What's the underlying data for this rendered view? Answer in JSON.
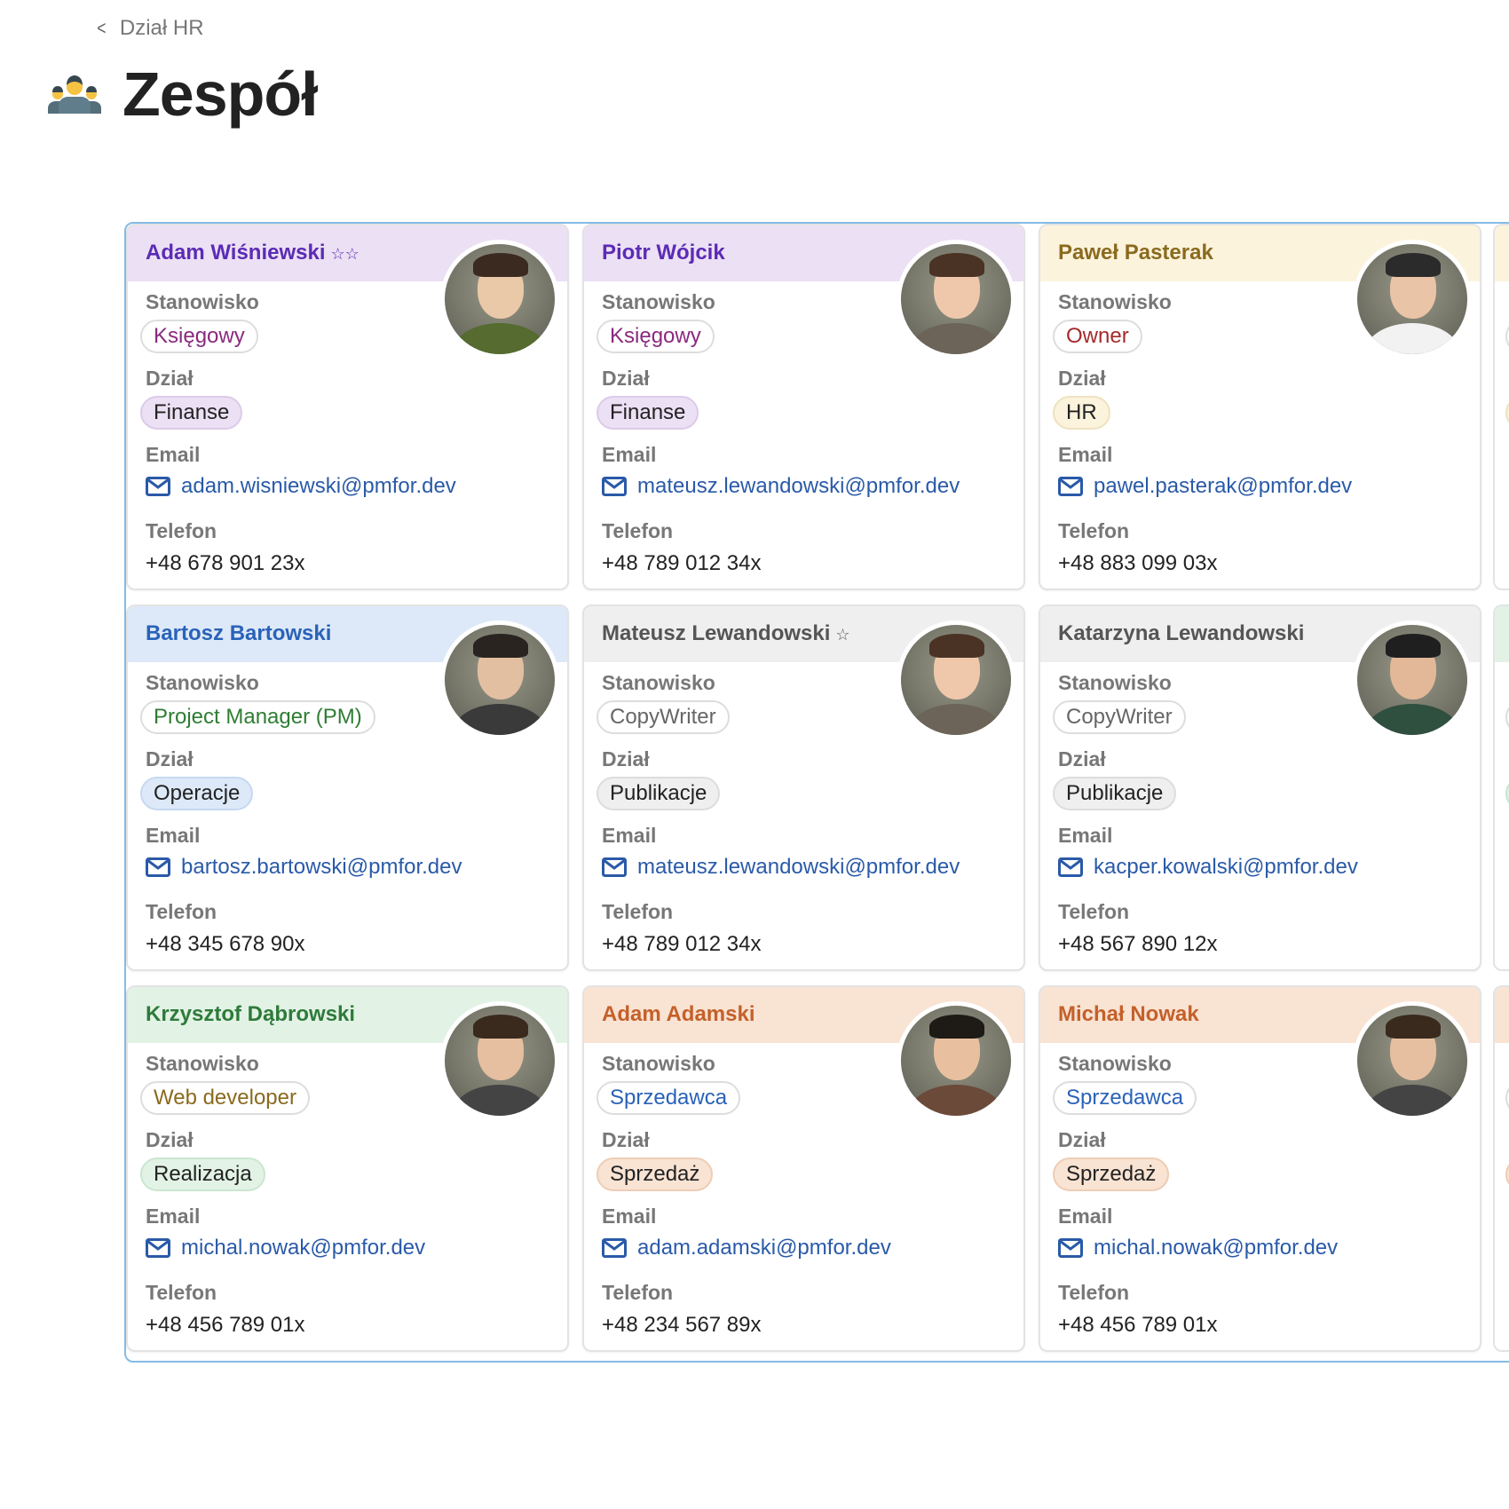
{
  "breadcrumb": {
    "label": "Dział HR"
  },
  "page": {
    "title": "Zespół",
    "icon": "team-icon"
  },
  "labels": {
    "position": "Stanowisko",
    "department": "Dział",
    "email": "Email",
    "phone": "Telefon"
  },
  "cards": [
    {
      "name": "Adam Wiśniewski",
      "stars": "☆☆",
      "position": "Księgowy",
      "department": "Finanse",
      "email": "adam.wisniewski@pmfor.dev",
      "phone": "+48 678 901 23x",
      "theme": "purple",
      "posColor": "#8a2a7f"
    },
    {
      "name": "Piotr Wójcik",
      "stars": "",
      "position": "Księgowy",
      "department": "Finanse",
      "email": "mateusz.lewandowski@pmfor.dev",
      "phone": "+48 789 012 34x",
      "theme": "purple",
      "posColor": "#8a2a7f"
    },
    {
      "name": "Paweł Pasterak",
      "stars": "",
      "position": "Owner",
      "department": "HR",
      "email": "pawel.pasterak@pmfor.dev",
      "phone": "+48 883 099 03x",
      "theme": "yellow",
      "posColor": "#a52a2a"
    },
    {
      "name": "Bartosz Bartowski",
      "stars": "",
      "position": "Project Manager (PM)",
      "department": "Operacje",
      "email": "bartosz.bartowski@pmfor.dev",
      "phone": "+48 345 678 90x",
      "theme": "blue",
      "posColor": "#2e7d32"
    },
    {
      "name": "Mateusz Lewandowski",
      "stars": "☆",
      "position": "CopyWriter",
      "department": "Publikacje",
      "email": "mateusz.lewandowski@pmfor.dev",
      "phone": "+48 789 012 34x",
      "theme": "gray",
      "posColor": "#666666"
    },
    {
      "name": "Katarzyna Lewandowski",
      "stars": "",
      "position": "CopyWriter",
      "department": "Publikacje",
      "email": "kacper.kowalski@pmfor.dev",
      "phone": "+48 567 890 12x",
      "theme": "gray",
      "posColor": "#666666"
    },
    {
      "name": "Krzysztof Dąbrowski",
      "stars": "",
      "position": "Web developer",
      "department": "Realizacja",
      "email": "michal.nowak@pmfor.dev",
      "phone": "+48 456 789 01x",
      "theme": "green",
      "posColor": "#8a6a1f"
    },
    {
      "name": "Adam Adamski",
      "stars": "",
      "position": "Sprzedawca",
      "department": "Sprzedaż",
      "email": "adam.adamski@pmfor.dev",
      "phone": "+48 234 567 89x",
      "theme": "orange",
      "posColor": "#2a62b8"
    },
    {
      "name": "Michał Nowak",
      "stars": "",
      "position": "Sprzedawca",
      "department": "Sprzedaż",
      "email": "michal.nowak@pmfor.dev",
      "phone": "+48 456 789 01x",
      "theme": "orange",
      "posColor": "#2a62b8"
    }
  ],
  "partialThemes": [
    "yellow",
    "green",
    "orange"
  ],
  "themes": {
    "purple": {
      "hdr": "#ece0f4",
      "name": "#5b2bb5",
      "pill": "#ece0f4",
      "pillBorder": "#dccbe8"
    },
    "yellow": {
      "hdr": "#fbf3dc",
      "name": "#8a6a1f",
      "pill": "#fbf3dc",
      "pillBorder": "#eee2bf"
    },
    "blue": {
      "hdr": "#dde9f8",
      "name": "#2a62b8",
      "pill": "#dde9f8",
      "pillBorder": "#c6d9f0"
    },
    "gray": {
      "hdr": "#efefef",
      "name": "#555555",
      "pill": "#efefef",
      "pillBorder": "#dddddd"
    },
    "green": {
      "hdr": "#e2f3e6",
      "name": "#2f7a3a",
      "pill": "#e2f3e6",
      "pillBorder": "#c9e6cf"
    },
    "orange": {
      "hdr": "#f9e3d3",
      "name": "#c4602a",
      "pill": "#f9e3d3",
      "pillBorder": "#eecdb5"
    }
  }
}
